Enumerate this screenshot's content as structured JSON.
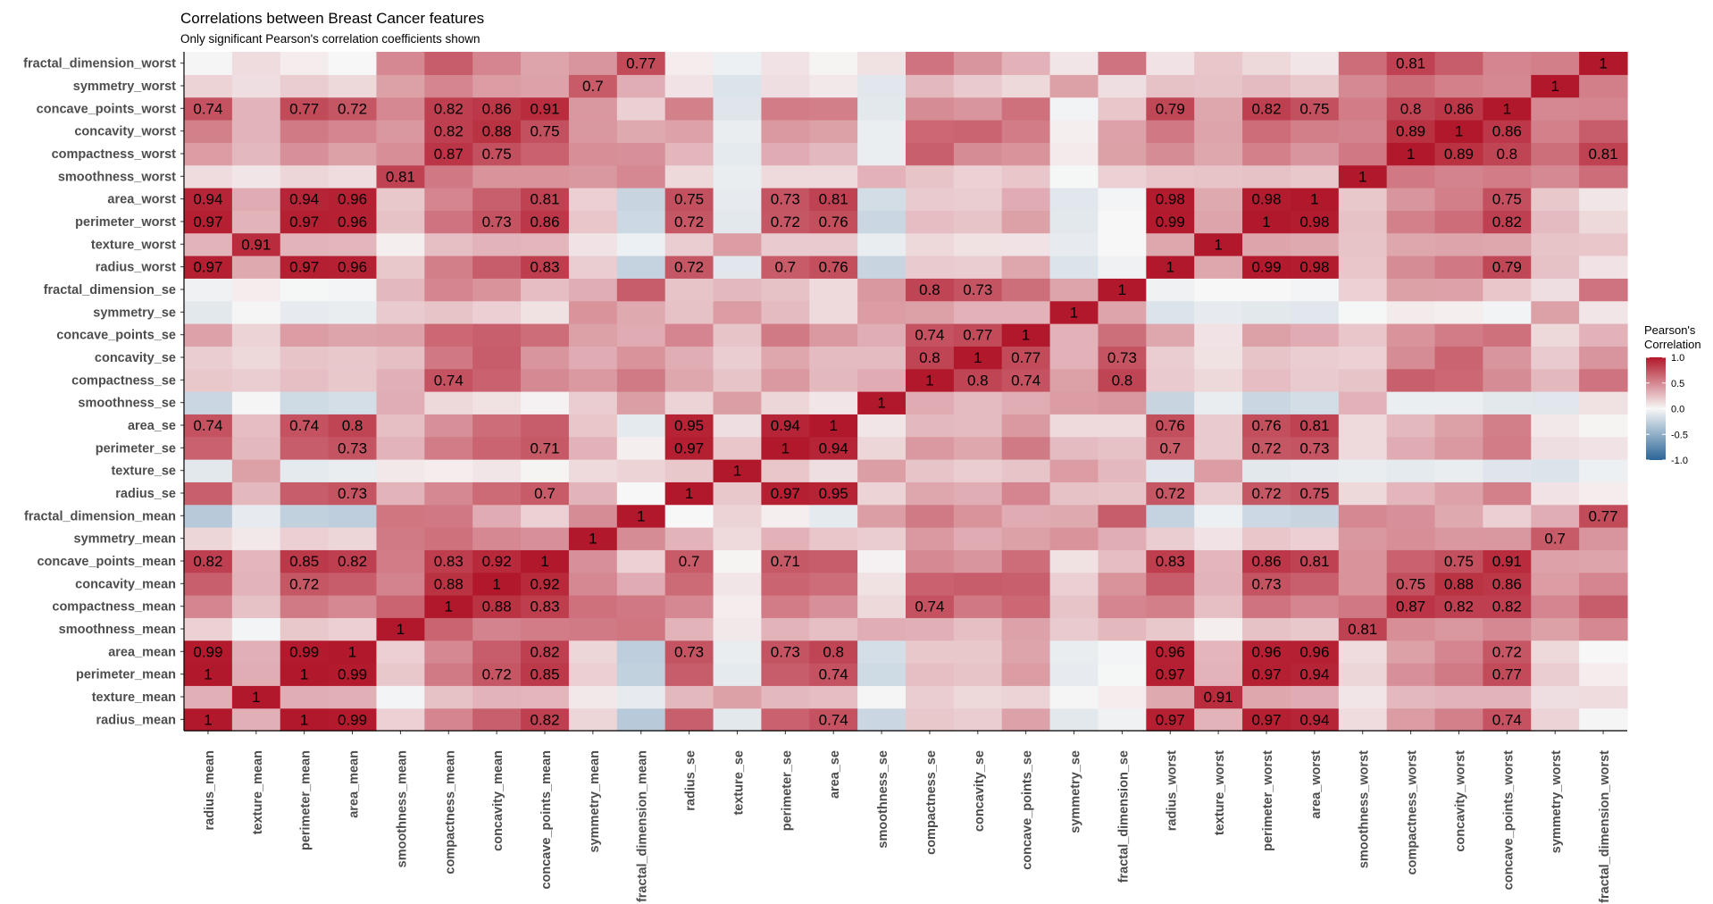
{
  "chart_data": {
    "type": "heatmap",
    "title": "Correlations between Breast Cancer features",
    "subtitle": "Only significant Pearson's correlation coefficients shown",
    "legend": {
      "title_lines": [
        "Pearson's",
        "Correlation"
      ],
      "ticks": [
        "1.0",
        "0.5",
        "0.0",
        "-0.5",
        "-1.0"
      ],
      "range": [
        -1,
        1
      ],
      "colors": {
        "low": "#2b6597",
        "mid": "#f7f7f7",
        "high": "#b2182b"
      },
      "placement": "right"
    },
    "features": [
      "radius_mean",
      "texture_mean",
      "perimeter_mean",
      "area_mean",
      "smoothness_mean",
      "compactness_mean",
      "concavity_mean",
      "concave_points_mean",
      "symmetry_mean",
      "fractal_dimension_mean",
      "radius_se",
      "texture_se",
      "perimeter_se",
      "area_se",
      "smoothness_se",
      "compactness_se",
      "concavity_se",
      "concave_points_se",
      "symmetry_se",
      "fractal_dimension_se",
      "radius_worst",
      "texture_worst",
      "perimeter_worst",
      "area_worst",
      "smoothness_worst",
      "compactness_worst",
      "concavity_worst",
      "concave_points_worst",
      "symmetry_worst",
      "fractal_dimension_worst"
    ],
    "matrix": [
      [
        1,
        0.32,
        1,
        0.99,
        0.17,
        0.51,
        0.68,
        0.82,
        0.15,
        -0.31,
        0.68,
        -0.1,
        0.67,
        0.74,
        -0.22,
        0.21,
        0.19,
        0.38,
        -0.1,
        -0.04,
        0.97,
        0.3,
        0.97,
        0.94,
        0.12,
        0.41,
        0.53,
        0.74,
        0.16,
        0.01
      ],
      [
        0.32,
        1,
        0.33,
        0.32,
        -0.02,
        0.24,
        0.3,
        0.29,
        0.07,
        -0.08,
        0.28,
        0.39,
        0.28,
        0.26,
        0.01,
        0.19,
        0.14,
        0.16,
        0.01,
        0.05,
        0.35,
        0.91,
        0.36,
        0.34,
        0.08,
        0.28,
        0.3,
        0.3,
        0.11,
        0.12
      ],
      [
        1,
        0.33,
        1,
        0.99,
        0.21,
        0.56,
        0.72,
        0.85,
        0.18,
        -0.26,
        0.69,
        -0.09,
        0.69,
        0.74,
        -0.2,
        0.25,
        0.23,
        0.41,
        -0.08,
        -0.01,
        0.97,
        0.3,
        0.97,
        0.94,
        0.15,
        0.46,
        0.56,
        0.77,
        0.19,
        0.05
      ],
      [
        0.99,
        0.32,
        0.99,
        1,
        0.18,
        0.5,
        0.69,
        0.82,
        0.15,
        -0.28,
        0.73,
        -0.07,
        0.73,
        0.8,
        -0.17,
        0.21,
        0.21,
        0.37,
        -0.07,
        -0.02,
        0.96,
        0.29,
        0.96,
        0.96,
        0.12,
        0.39,
        0.51,
        0.72,
        0.14,
        0
      ],
      [
        0.17,
        -0.02,
        0.21,
        0.18,
        1,
        0.66,
        0.52,
        0.55,
        0.56,
        0.58,
        0.3,
        0.07,
        0.3,
        0.25,
        0.33,
        0.32,
        0.25,
        0.38,
        0.2,
        0.28,
        0.21,
        0.04,
        0.24,
        0.21,
        0.81,
        0.47,
        0.43,
        0.5,
        0.39,
        0.5
      ],
      [
        0.51,
        0.24,
        0.56,
        0.5,
        0.66,
        1,
        0.88,
        0.83,
        0.6,
        0.57,
        0.5,
        0.05,
        0.55,
        0.46,
        0.14,
        0.74,
        0.57,
        0.64,
        0.23,
        0.51,
        0.54,
        0.25,
        0.59,
        0.51,
        0.57,
        0.87,
        0.82,
        0.82,
        0.51,
        0.69
      ],
      [
        0.68,
        0.3,
        0.72,
        0.69,
        0.52,
        0.88,
        1,
        0.92,
        0.5,
        0.34,
        0.63,
        0.08,
        0.66,
        0.62,
        0.1,
        0.67,
        0.69,
        0.68,
        0.18,
        0.45,
        0.69,
        0.3,
        0.73,
        0.68,
        0.45,
        0.75,
        0.88,
        0.86,
        0.41,
        0.51
      ],
      [
        0.82,
        0.29,
        0.85,
        0.82,
        0.55,
        0.83,
        0.92,
        1,
        0.46,
        0.17,
        0.7,
        0.02,
        0.71,
        0.69,
        0.03,
        0.49,
        0.44,
        0.62,
        0.1,
        0.26,
        0.83,
        0.29,
        0.86,
        0.81,
        0.45,
        0.67,
        0.75,
        0.91,
        0.38,
        0.37
      ],
      [
        0.15,
        0.07,
        0.18,
        0.15,
        0.56,
        0.6,
        0.5,
        0.46,
        1,
        0.48,
        0.3,
        0.13,
        0.31,
        0.22,
        0.19,
        0.42,
        0.34,
        0.39,
        0.45,
        0.33,
        0.19,
        0.09,
        0.22,
        0.18,
        0.43,
        0.47,
        0.43,
        0.43,
        0.7,
        0.44
      ],
      [
        -0.31,
        -0.08,
        -0.26,
        -0.28,
        0.58,
        0.57,
        0.34,
        0.17,
        0.48,
        1,
        0,
        0.16,
        0.04,
        -0.09,
        0.4,
        0.56,
        0.45,
        0.34,
        0.35,
        0.69,
        -0.25,
        -0.05,
        -0.21,
        -0.23,
        0.5,
        0.46,
        0.35,
        0.18,
        0.33,
        0.77
      ],
      [
        0.68,
        0.28,
        0.69,
        0.73,
        0.3,
        0.5,
        0.63,
        0.7,
        0.3,
        0,
        1,
        0.21,
        0.97,
        0.95,
        0.16,
        0.36,
        0.33,
        0.51,
        0.24,
        0.23,
        0.72,
        0.19,
        0.72,
        0.75,
        0.14,
        0.29,
        0.38,
        0.53,
        0.09,
        0.05
      ],
      [
        -0.1,
        0.39,
        -0.09,
        -0.07,
        0.07,
        0.05,
        0.08,
        0.02,
        0.13,
        0.16,
        0.21,
        1,
        0.22,
        0.11,
        0.4,
        0.23,
        0.19,
        0.23,
        0.41,
        0.28,
        -0.11,
        0.41,
        -0.1,
        -0.08,
        -0.07,
        -0.09,
        -0.07,
        -0.12,
        -0.13,
        -0.05
      ],
      [
        0.67,
        0.28,
        0.69,
        0.73,
        0.3,
        0.55,
        0.66,
        0.71,
        0.31,
        0.04,
        0.97,
        0.22,
        1,
        0.94,
        0.15,
        0.42,
        0.36,
        0.56,
        0.27,
        0.24,
        0.7,
        0.2,
        0.72,
        0.73,
        0.13,
        0.34,
        0.42,
        0.55,
        0.11,
        0.09
      ],
      [
        0.74,
        0.26,
        0.74,
        0.8,
        0.25,
        0.46,
        0.62,
        0.69,
        0.22,
        -0.09,
        0.95,
        0.11,
        0.94,
        1,
        0.08,
        0.28,
        0.27,
        0.42,
        0.13,
        0.13,
        0.76,
        0.2,
        0.76,
        0.81,
        0.13,
        0.28,
        0.39,
        0.54,
        0.07,
        0.02
      ],
      [
        -0.22,
        0.01,
        -0.2,
        -0.17,
        0.33,
        0.14,
        0.1,
        0.03,
        0.19,
        0.4,
        0.16,
        0.4,
        0.15,
        0.08,
        1,
        0.34,
        0.27,
        0.33,
        0.41,
        0.43,
        -0.23,
        -0.07,
        -0.22,
        -0.18,
        0.31,
        -0.06,
        -0.06,
        -0.1,
        -0.11,
        0.1
      ],
      [
        0.21,
        0.19,
        0.25,
        0.21,
        0.32,
        0.74,
        0.67,
        0.49,
        0.42,
        0.56,
        0.36,
        0.23,
        0.42,
        0.28,
        0.34,
        1,
        0.8,
        0.74,
        0.39,
        0.8,
        0.2,
        0.14,
        0.26,
        0.2,
        0.23,
        0.68,
        0.64,
        0.48,
        0.28,
        0.59
      ],
      [
        0.19,
        0.14,
        0.23,
        0.21,
        0.25,
        0.57,
        0.69,
        0.44,
        0.34,
        0.45,
        0.33,
        0.19,
        0.36,
        0.27,
        0.27,
        0.8,
        1,
        0.77,
        0.31,
        0.73,
        0.19,
        0.1,
        0.23,
        0.19,
        0.17,
        0.48,
        0.66,
        0.44,
        0.2,
        0.44
      ],
      [
        0.38,
        0.16,
        0.41,
        0.37,
        0.38,
        0.64,
        0.68,
        0.62,
        0.39,
        0.34,
        0.51,
        0.23,
        0.56,
        0.42,
        0.33,
        0.74,
        0.77,
        1,
        0.31,
        0.61,
        0.36,
        0.09,
        0.39,
        0.34,
        0.22,
        0.45,
        0.55,
        0.6,
        0.14,
        0.31
      ],
      [
        -0.1,
        0.01,
        -0.08,
        -0.07,
        0.2,
        0.23,
        0.18,
        0.1,
        0.45,
        0.35,
        0.24,
        0.41,
        0.27,
        0.13,
        0.41,
        0.39,
        0.31,
        0.31,
        1,
        0.37,
        -0.13,
        -0.08,
        -0.1,
        -0.11,
        -0.01,
        0.06,
        0.04,
        -0.03,
        0.39,
        0.08
      ],
      [
        -0.04,
        0.05,
        -0.01,
        -0.02,
        0.28,
        0.51,
        0.45,
        0.26,
        0.33,
        0.69,
        0.23,
        0.28,
        0.24,
        0.13,
        0.43,
        0.8,
        0.73,
        0.61,
        0.37,
        1,
        -0.04,
        0,
        0,
        -0.02,
        0.17,
        0.39,
        0.38,
        0.22,
        0.11,
        0.59
      ],
      [
        0.97,
        0.35,
        0.97,
        0.96,
        0.21,
        0.54,
        0.69,
        0.83,
        0.19,
        -0.25,
        0.72,
        -0.11,
        0.7,
        0.76,
        -0.23,
        0.2,
        0.19,
        0.36,
        -0.13,
        -0.04,
        1,
        0.36,
        0.99,
        0.98,
        0.22,
        0.48,
        0.57,
        0.79,
        0.24,
        0.09
      ],
      [
        0.3,
        0.91,
        0.3,
        0.29,
        0.04,
        0.25,
        0.3,
        0.29,
        0.09,
        -0.05,
        0.19,
        0.41,
        0.2,
        0.2,
        -0.07,
        0.14,
        0.1,
        0.09,
        -0.08,
        0,
        0.36,
        1,
        0.37,
        0.35,
        0.23,
        0.36,
        0.37,
        0.36,
        0.23,
        0.22
      ],
      [
        0.97,
        0.3,
        0.97,
        0.96,
        0.24,
        0.59,
        0.73,
        0.86,
        0.22,
        -0.21,
        0.72,
        -0.1,
        0.72,
        0.76,
        -0.22,
        0.26,
        0.23,
        0.39,
        -0.1,
        0,
        0.99,
        0.37,
        1,
        0.98,
        0.24,
        0.53,
        0.62,
        0.82,
        0.27,
        0.14
      ],
      [
        0.94,
        0.34,
        0.94,
        0.96,
        0.21,
        0.51,
        0.68,
        0.81,
        0.18,
        -0.23,
        0.75,
        -0.08,
        0.73,
        0.81,
        -0.18,
        0.2,
        0.19,
        0.34,
        -0.11,
        -0.02,
        0.98,
        0.35,
        0.98,
        1,
        0.21,
        0.44,
        0.54,
        0.75,
        0.21,
        0.08
      ],
      [
        0.12,
        0.08,
        0.15,
        0.12,
        0.81,
        0.57,
        0.45,
        0.45,
        0.43,
        0.5,
        0.14,
        -0.07,
        0.13,
        0.13,
        0.31,
        0.23,
        0.17,
        0.22,
        -0.01,
        0.17,
        0.22,
        0.23,
        0.24,
        0.21,
        1,
        0.57,
        0.52,
        0.55,
        0.49,
        0.62
      ],
      [
        0.41,
        0.28,
        0.46,
        0.39,
        0.47,
        0.87,
        0.75,
        0.67,
        0.47,
        0.46,
        0.29,
        -0.09,
        0.34,
        0.28,
        -0.06,
        0.68,
        0.48,
        0.45,
        0.06,
        0.39,
        0.48,
        0.36,
        0.53,
        0.44,
        0.57,
        1,
        0.89,
        0.8,
        0.61,
        0.81
      ],
      [
        0.53,
        0.3,
        0.56,
        0.51,
        0.43,
        0.82,
        0.88,
        0.75,
        0.43,
        0.35,
        0.38,
        -0.07,
        0.42,
        0.39,
        -0.06,
        0.64,
        0.66,
        0.55,
        0.04,
        0.38,
        0.57,
        0.37,
        0.62,
        0.54,
        0.52,
        0.89,
        1,
        0.86,
        0.53,
        0.69
      ],
      [
        0.74,
        0.3,
        0.77,
        0.72,
        0.5,
        0.82,
        0.86,
        0.91,
        0.43,
        0.18,
        0.53,
        -0.12,
        0.55,
        0.54,
        -0.1,
        0.48,
        0.44,
        0.6,
        -0.03,
        0.22,
        0.79,
        0.36,
        0.82,
        0.75,
        0.55,
        0.8,
        0.86,
        1,
        0.5,
        0.51
      ],
      [
        0.16,
        0.11,
        0.19,
        0.14,
        0.39,
        0.51,
        0.41,
        0.38,
        0.7,
        0.33,
        0.09,
        -0.13,
        0.11,
        0.07,
        -0.11,
        0.28,
        0.2,
        0.14,
        0.39,
        0.11,
        0.24,
        0.23,
        0.27,
        0.21,
        0.49,
        0.61,
        0.53,
        0.5,
        1,
        0.54
      ],
      [
        0.01,
        0.12,
        0.05,
        0,
        0.5,
        0.69,
        0.51,
        0.37,
        0.44,
        0.77,
        0.05,
        -0.05,
        0.09,
        0.02,
        0.1,
        0.59,
        0.44,
        0.31,
        0.08,
        0.59,
        0.09,
        0.22,
        0.14,
        0.08,
        0.62,
        0.81,
        0.69,
        0.51,
        0.54,
        1
      ]
    ],
    "label_threshold": 0.7,
    "grid": false
  }
}
